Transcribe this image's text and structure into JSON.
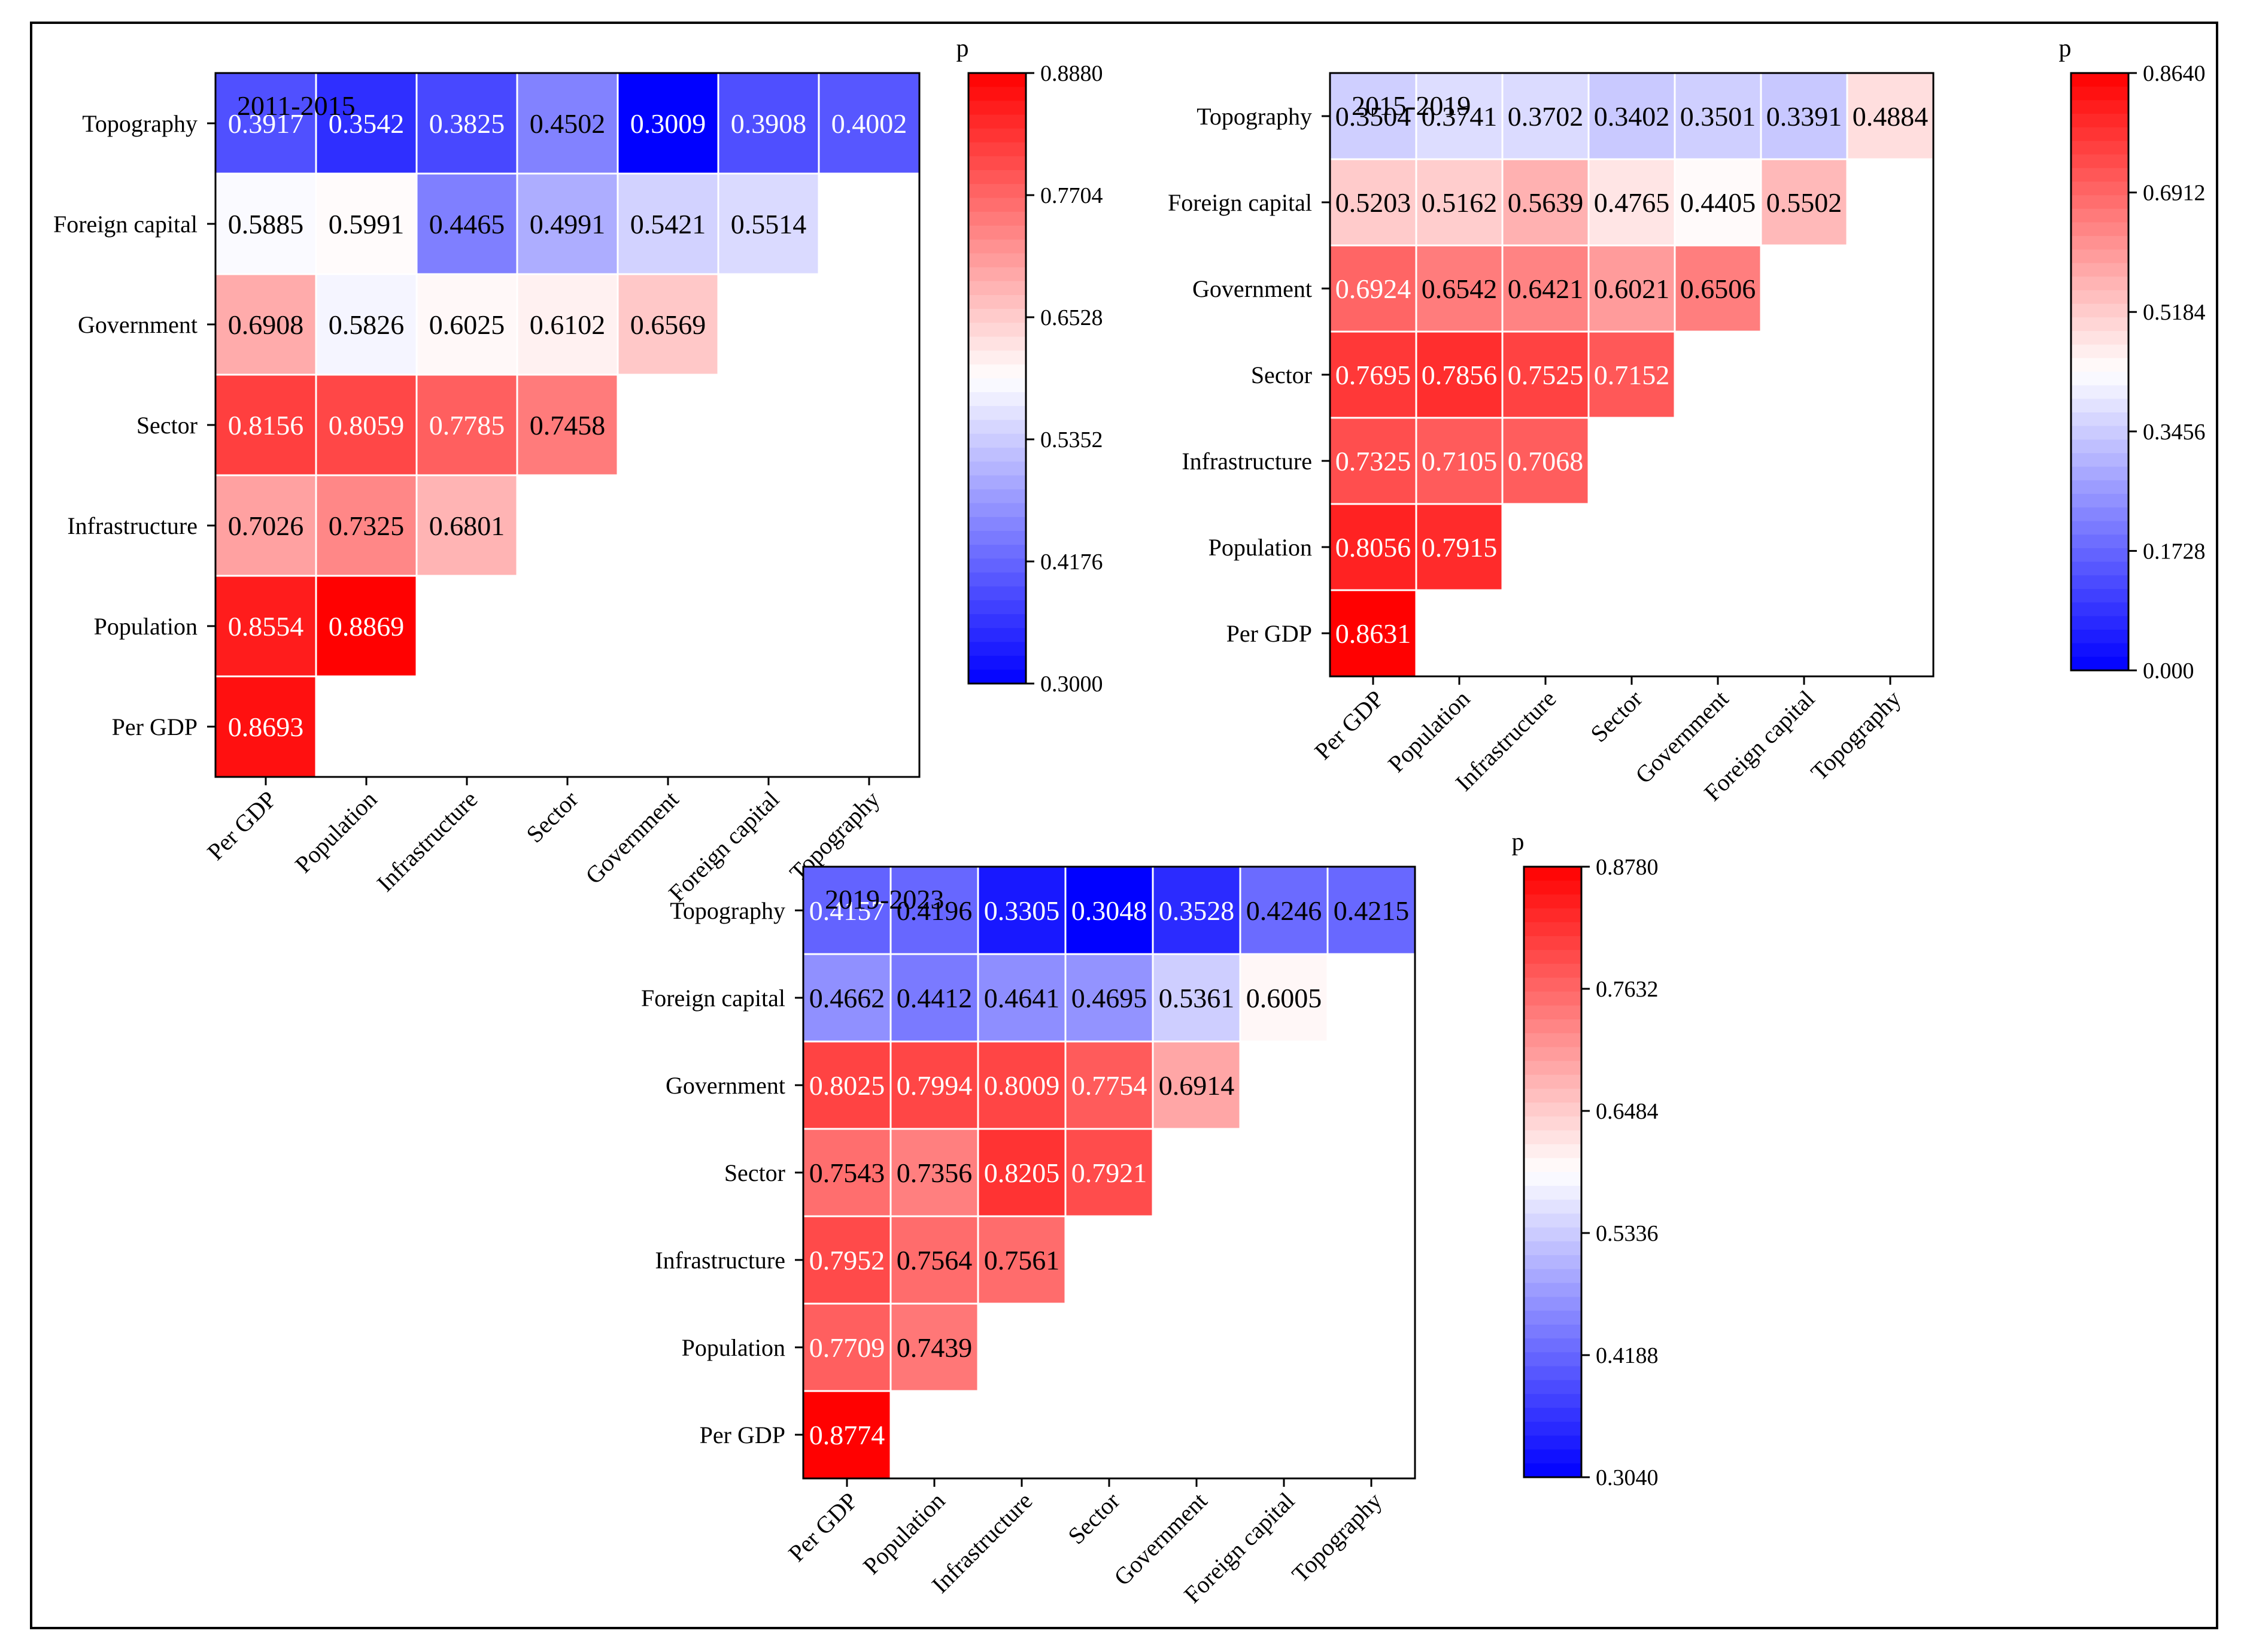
{
  "chart_data": [
    {
      "type": "heatmap",
      "title": "2011-2015",
      "colorbar_title": "p",
      "variables": [
        "Per GDP",
        "Population",
        "Infrastructure",
        "Sector",
        "Government",
        "Foreign capital",
        "Topography"
      ],
      "x_labels": [
        "Per GDP",
        "Population",
        "Infrastructure",
        "Sector",
        "Government",
        "Foreign capital",
        "Topography"
      ],
      "y_labels_top_to_bottom": [
        "Topography",
        "Foreign capital",
        "Government",
        "Sector",
        "Infrastructure",
        "Population",
        "Per GDP"
      ],
      "lower_triangle_rows_by_variable": [
        [
          "0.8693"
        ],
        [
          "0.8554",
          "0.8869"
        ],
        [
          "0.7026",
          "0.7325",
          "0.6801"
        ],
        [
          "0.8156",
          "0.8059",
          "0.7785",
          "0.7458"
        ],
        [
          "0.6908",
          "0.5826",
          "0.6025",
          "0.6102",
          "0.6569"
        ],
        [
          "0.5885",
          "0.5991",
          "0.4465",
          "0.4991",
          "0.5421",
          "0.5514"
        ],
        [
          "0.3917",
          "0.3542",
          "0.3825",
          "0.4502",
          "0.3009",
          "0.3908",
          "0.4002"
        ]
      ],
      "vmin": 0.3,
      "vmax": 0.888,
      "colorbar_ticks": [
        "0.8880",
        "0.7704",
        "0.6528",
        "0.5352",
        "0.4176",
        "0.3000"
      ],
      "colormap": {
        "low": "#0000ff",
        "mid": "#ffffff",
        "high": "#ff0000"
      }
    },
    {
      "type": "heatmap",
      "title": "2015-2019",
      "colorbar_title": "p",
      "variables": [
        "Per GDP",
        "Population",
        "Infrastructure",
        "Sector",
        "Government",
        "Foreign capital",
        "Topography"
      ],
      "x_labels": [
        "Per GDP",
        "Population",
        "Infrastructure",
        "Sector",
        "Government",
        "Foreign capital",
        "Topography"
      ],
      "y_labels_top_to_bottom": [
        "Topography",
        "Foreign capital",
        "Government",
        "Sector",
        "Infrastructure",
        "Population",
        "Per GDP"
      ],
      "lower_triangle_rows_by_variable": [
        [
          "0.8631"
        ],
        [
          "0.8056",
          "0.7915"
        ],
        [
          "0.7325",
          "0.7105",
          "0.7068"
        ],
        [
          "0.7695",
          "0.7856",
          "0.7525",
          "0.7152"
        ],
        [
          "0.6924",
          "0.6542",
          "0.6421",
          "0.6021",
          "0.6506"
        ],
        [
          "0.5203",
          "0.5162",
          "0.5639",
          "0.4765",
          "0.4405",
          "0.5502"
        ],
        [
          "0.3504",
          "0.3741",
          "0.3702",
          "0.3402",
          "0.3501",
          "0.3391",
          "0.4884"
        ]
      ],
      "vmin": 0.0,
      "vmax": 0.864,
      "colorbar_ticks": [
        "0.8640",
        "0.6912",
        "0.5184",
        "0.3456",
        "0.1728",
        "0.000"
      ],
      "colormap": {
        "low": "#0000ff",
        "mid": "#ffffff",
        "high": "#ff0000"
      }
    },
    {
      "type": "heatmap",
      "title": "2019-2023",
      "colorbar_title": "p",
      "variables": [
        "Per GDP",
        "Population",
        "Infrastructure",
        "Sector",
        "Government",
        "Foreign capital",
        "Topography"
      ],
      "x_labels": [
        "Per GDP",
        "Population",
        "Infrastructure",
        "Sector",
        "Government",
        "Foreign capital",
        "Topography"
      ],
      "y_labels_top_to_bottom": [
        "Topography",
        "Foreign capital",
        "Government",
        "Sector",
        "Infrastructure",
        "Population",
        "Per GDP"
      ],
      "lower_triangle_rows_by_variable": [
        [
          "0.8774"
        ],
        [
          "0.7709",
          "0.7439"
        ],
        [
          "0.7952",
          "0.7564",
          "0.7561"
        ],
        [
          "0.7543",
          "0.7356",
          "0.8205",
          "0.7921"
        ],
        [
          "0.8025",
          "0.7994",
          "0.8009",
          "0.7754",
          "0.6914"
        ],
        [
          "0.4662",
          "0.4412",
          "0.4641",
          "0.4695",
          "0.5361",
          "0.6005"
        ],
        [
          "0.4157",
          "0.4196",
          "0.3305",
          "0.3048",
          "0.3528",
          "0.4246",
          "0.4215"
        ]
      ],
      "vmin": 0.304,
      "vmax": 0.878,
      "colorbar_ticks": [
        "0.8780",
        "0.7632",
        "0.6484",
        "0.5336",
        "0.4188",
        "0.3040"
      ],
      "colormap": {
        "low": "#0000ff",
        "mid": "#ffffff",
        "high": "#ff0000"
      }
    }
  ]
}
